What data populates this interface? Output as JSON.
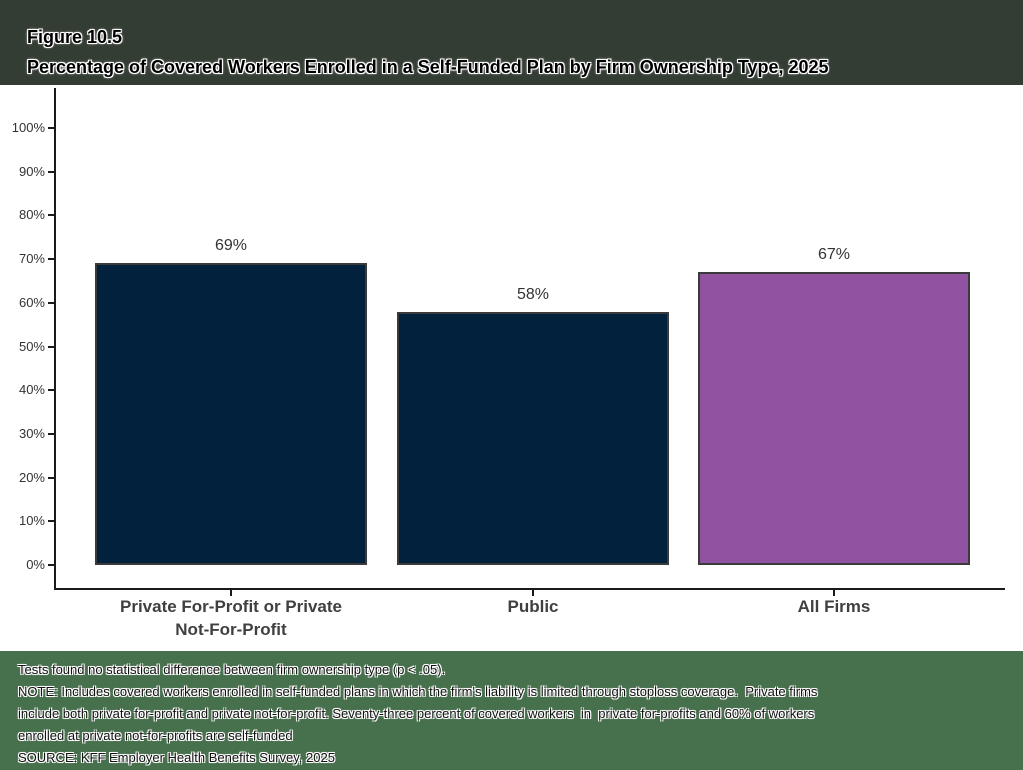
{
  "header": {
    "figure_number": "Figure 10.5",
    "title": "Percentage of Covered Workers Enrolled in a Self-Funded Plan by Firm Ownership Type, 2025"
  },
  "chart_data": {
    "type": "bar",
    "title": "Percentage of Covered Workers Enrolled in a Self-Funded Plan by Firm Ownership Type, 2025",
    "categories": [
      "Private For-Profit or Private Not-For-Profit",
      "Public",
      "All Firms"
    ],
    "category_lines": [
      [
        "Private For-Profit or Private",
        "Not-For-Profit"
      ],
      [
        "Public"
      ],
      [
        "All Firms"
      ]
    ],
    "values": [
      69,
      58,
      67
    ],
    "data_labels": [
      "69%",
      "58%",
      "67%"
    ],
    "bar_colors": [
      "#02213c",
      "#02213c",
      "#9252a2"
    ],
    "xlabel": "",
    "ylabel": "",
    "ylim": [
      0,
      100
    ],
    "y_tick_labels": [
      "0%",
      "10%",
      "20%",
      "30%",
      "40%",
      "50%",
      "60%",
      "70%",
      "80%",
      "90%",
      "100%"
    ],
    "grid": false,
    "legend": "none"
  },
  "footnotes": {
    "lines": [
      "Tests found no statistical difference between firm ownership type (p < .05).",
      "NOTE: Includes covered workers enrolled in self-funded plans in which the firm's liability is limited through stoploss coverage.  Private firms",
      "include both private for-profit and private not-for-profit. Seventy-three percent of covered workers  in  private for-profits and 60% of workers",
      "enrolled at private not-for-profits are self-funded",
      "SOURCE: KFF Employer Health Benefits Survey, 2025"
    ]
  },
  "colors": {
    "bar_navy": "#02213c",
    "bar_purple": "#9252a2",
    "bar_border": "#3a3a3a",
    "axis": "#1a1a1a",
    "tick_label": "#333333",
    "category_label": "#404040",
    "backdrop_top": "#343d34",
    "backdrop_bottom": "#47704d",
    "panel": "#ffffff"
  }
}
